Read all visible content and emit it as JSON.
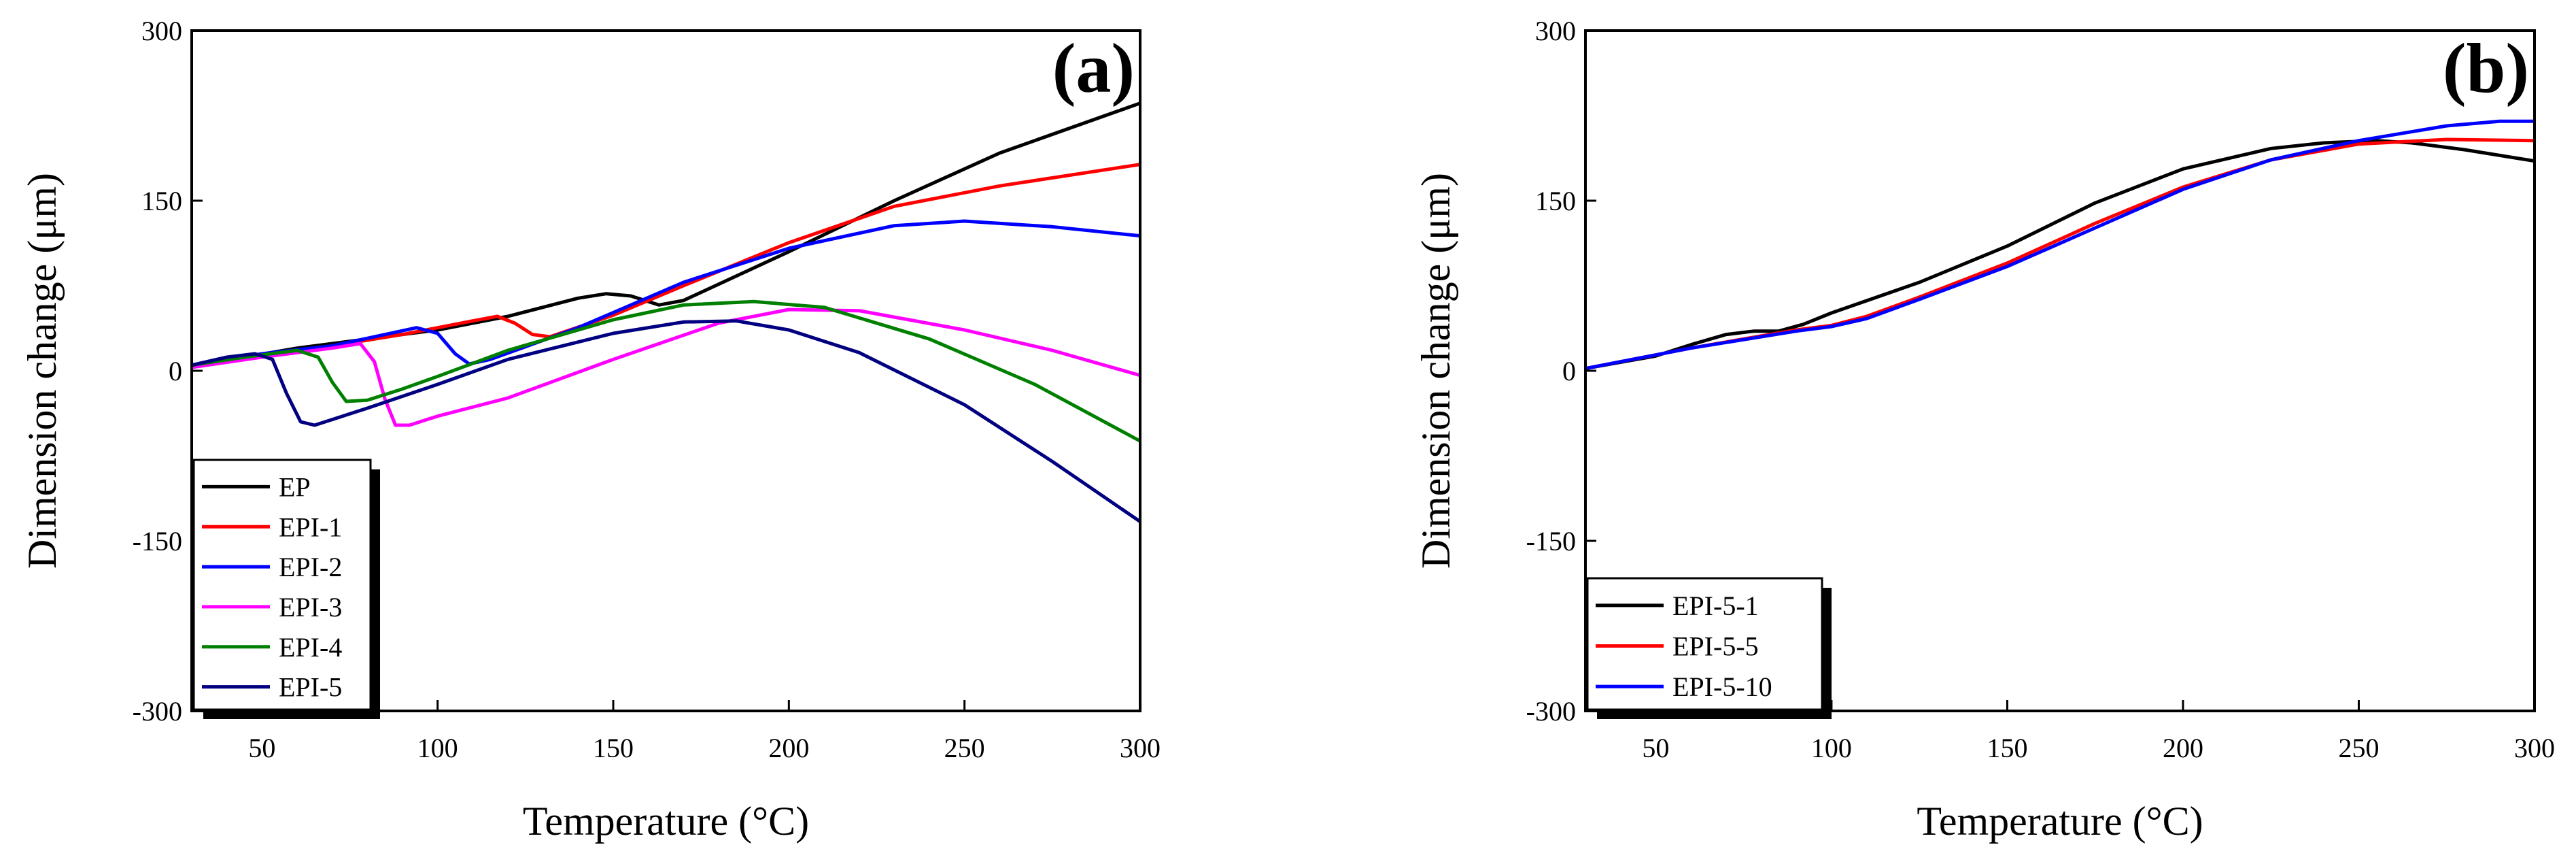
{
  "chart_data": [
    {
      "type": "line",
      "panel_label": "(a)",
      "xlabel": "Temperature (°C)",
      "ylabel": "Dimension change (μm)",
      "xlim": [
        30,
        300
      ],
      "ylim": [
        -300,
        300
      ],
      "xticks": [
        50,
        100,
        150,
        200,
        250,
        300
      ],
      "yticks": [
        -300,
        -150,
        0,
        150,
        300
      ],
      "legend_position": "bottom-left",
      "series": [
        {
          "name": "EP",
          "color": "#000000",
          "points": [
            [
              30,
              3
            ],
            [
              45,
              12
            ],
            [
              60,
              20
            ],
            [
              80,
              28
            ],
            [
              100,
              36
            ],
            [
              120,
              48
            ],
            [
              140,
              64
            ],
            [
              148,
              68
            ],
            [
              155,
              66
            ],
            [
              163,
              58
            ],
            [
              170,
              62
            ],
            [
              200,
              105
            ],
            [
              230,
              150
            ],
            [
              260,
              192
            ],
            [
              300,
              236
            ]
          ]
        },
        {
          "name": "EPI-1",
          "color": "#ff0000",
          "points": [
            [
              30,
              5
            ],
            [
              50,
              14
            ],
            [
              70,
              22
            ],
            [
              90,
              32
            ],
            [
              110,
              44
            ],
            [
              117,
              48
            ],
            [
              122,
              42
            ],
            [
              127,
              32
            ],
            [
              132,
              30
            ],
            [
              150,
              49
            ],
            [
              170,
              75
            ],
            [
              200,
              113
            ],
            [
              230,
              145
            ],
            [
              260,
              163
            ],
            [
              300,
              182
            ]
          ]
        },
        {
          "name": "EPI-2",
          "color": "#0000ff",
          "points": [
            [
              30,
              5
            ],
            [
              50,
              15
            ],
            [
              70,
              22
            ],
            [
              85,
              32
            ],
            [
              94,
              38
            ],
            [
              100,
              33
            ],
            [
              105,
              15
            ],
            [
              109,
              6
            ],
            [
              115,
              10
            ],
            [
              140,
              38
            ],
            [
              170,
              78
            ],
            [
              200,
              108
            ],
            [
              230,
              128
            ],
            [
              250,
              132
            ],
            [
              275,
              127
            ],
            [
              300,
              119
            ]
          ]
        },
        {
          "name": "EPI-3",
          "color": "#ff00ff",
          "points": [
            [
              30,
              3
            ],
            [
              50,
              12
            ],
            [
              70,
              20
            ],
            [
              78,
              24
            ],
            [
              82,
              8
            ],
            [
              85,
              -25
            ],
            [
              88,
              -48
            ],
            [
              92,
              -48
            ],
            [
              100,
              -40
            ],
            [
              120,
              -24
            ],
            [
              150,
              10
            ],
            [
              180,
              42
            ],
            [
              200,
              54
            ],
            [
              220,
              53
            ],
            [
              250,
              36
            ],
            [
              275,
              18
            ],
            [
              300,
              -4
            ]
          ]
        },
        {
          "name": "EPI-4",
          "color": "#008000",
          "points": [
            [
              30,
              5
            ],
            [
              45,
              12
            ],
            [
              60,
              18
            ],
            [
              66,
              12
            ],
            [
              70,
              -10
            ],
            [
              74,
              -27
            ],
            [
              80,
              -26
            ],
            [
              90,
              -16
            ],
            [
              100,
              -5
            ],
            [
              120,
              18
            ],
            [
              150,
              45
            ],
            [
              170,
              58
            ],
            [
              190,
              61
            ],
            [
              210,
              56
            ],
            [
              240,
              28
            ],
            [
              270,
              -12
            ],
            [
              300,
              -62
            ]
          ]
        },
        {
          "name": "EPI-5",
          "color": "#000080",
          "points": [
            [
              30,
              5
            ],
            [
              40,
              12
            ],
            [
              48,
              15
            ],
            [
              53,
              10
            ],
            [
              57,
              -20
            ],
            [
              61,
              -45
            ],
            [
              65,
              -48
            ],
            [
              80,
              -33
            ],
            [
              100,
              -12
            ],
            [
              120,
              10
            ],
            [
              150,
              33
            ],
            [
              170,
              43
            ],
            [
              185,
              44
            ],
            [
              200,
              36
            ],
            [
              220,
              16
            ],
            [
              250,
              -30
            ],
            [
              275,
              -80
            ],
            [
              300,
              -133
            ]
          ]
        }
      ]
    },
    {
      "type": "line",
      "panel_label": "(b)",
      "xlabel": "Temperature (°C)",
      "ylabel": "Dimension change (μm)",
      "xlim": [
        30,
        300
      ],
      "ylim": [
        -300,
        300
      ],
      "xticks": [
        50,
        100,
        150,
        200,
        250,
        300
      ],
      "yticks": [
        -300,
        -150,
        0,
        150,
        300
      ],
      "legend_position": "bottom-left",
      "series": [
        {
          "name": "EPI-5-1",
          "color": "#000000",
          "points": [
            [
              30,
              2
            ],
            [
              50,
              13
            ],
            [
              60,
              23
            ],
            [
              70,
              32
            ],
            [
              78,
              35
            ],
            [
              85,
              35
            ],
            [
              92,
              41
            ],
            [
              100,
              51
            ],
            [
              125,
              78
            ],
            [
              150,
              110
            ],
            [
              175,
              148
            ],
            [
              200,
              178
            ],
            [
              225,
              196
            ],
            [
              240,
              201
            ],
            [
              255,
              203
            ],
            [
              265,
              201
            ],
            [
              280,
              195
            ],
            [
              300,
              185
            ]
          ]
        },
        {
          "name": "EPI-5-5",
          "color": "#ff0000",
          "points": [
            [
              30,
              2
            ],
            [
              60,
              20
            ],
            [
              90,
              36
            ],
            [
              100,
              40
            ],
            [
              110,
              48
            ],
            [
              125,
              65
            ],
            [
              150,
              95
            ],
            [
              175,
              130
            ],
            [
              200,
              162
            ],
            [
              225,
              186
            ],
            [
              250,
              200
            ],
            [
              275,
              204
            ],
            [
              300,
              203
            ]
          ]
        },
        {
          "name": "EPI-5-10",
          "color": "#0000ff",
          "points": [
            [
              30,
              2
            ],
            [
              60,
              20
            ],
            [
              90,
              35
            ],
            [
              100,
              39
            ],
            [
              110,
              46
            ],
            [
              125,
              63
            ],
            [
              150,
              92
            ],
            [
              175,
              126
            ],
            [
              200,
              160
            ],
            [
              225,
              186
            ],
            [
              250,
              203
            ],
            [
              275,
              216
            ],
            [
              290,
              220
            ],
            [
              300,
              220
            ]
          ]
        }
      ]
    }
  ]
}
